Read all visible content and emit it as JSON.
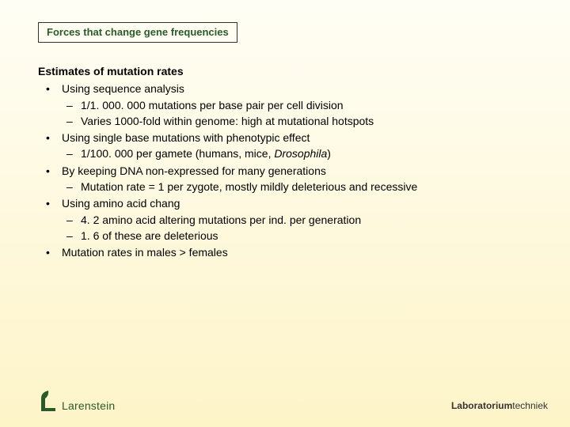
{
  "title": "Forces that change gene frequencies",
  "heading": "Estimates of mutation rates",
  "bullets": [
    {
      "text": "Using sequence analysis",
      "subs": [
        "1/1. 000. 000 mutations per base pair per cell division",
        "Varies 1000-fold within genome: high at mutational hotspots"
      ]
    },
    {
      "text": "Using single base mutations with phenotypic effect",
      "subs": [
        "1/100. 000 per gamete (humans, mice, <i>Drosophila</i>)"
      ]
    },
    {
      "text": "By keeping DNA non-expressed for many generations",
      "subs": [
        "Mutation rate = 1 per zygote, mostly mildly deleterious and recessive"
      ]
    },
    {
      "text": "Using amino acid chang",
      "subs": [
        "4. 2 amino acid altering mutations per ind. per generation",
        "1. 6 of these are deleterious"
      ]
    },
    {
      "text": "Mutation rates in males > females",
      "subs": []
    }
  ],
  "logo_text": "Larenstein",
  "lab_bold": "Laboratorium",
  "lab_light": "techniek",
  "colors": {
    "title_color": "#2a5a2a",
    "logo_color": "#2a5a2a"
  }
}
